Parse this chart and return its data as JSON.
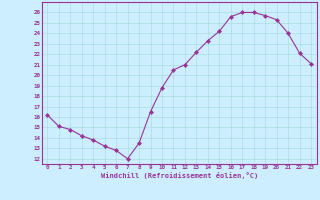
{
  "x": [
    0,
    1,
    2,
    3,
    4,
    5,
    6,
    7,
    8,
    9,
    10,
    11,
    12,
    13,
    14,
    15,
    16,
    17,
    18,
    19,
    20,
    21,
    22,
    23
  ],
  "y": [
    16.2,
    15.1,
    14.8,
    14.2,
    13.8,
    13.2,
    12.8,
    12.0,
    13.5,
    16.5,
    18.8,
    20.5,
    21.0,
    22.2,
    23.3,
    24.2,
    25.6,
    26.0,
    26.0,
    25.7,
    25.3,
    24.0,
    22.1,
    21.1
  ],
  "line_color": "#993399",
  "marker": "D",
  "marker_size": 2,
  "bg_color": "#cceeff",
  "grid_color": "#aadddd",
  "xlabel": "Windchill (Refroidissement éolien,°C)",
  "xlabel_color": "#993399",
  "tick_color": "#993399",
  "ylim": [
    11.5,
    27
  ],
  "xlim": [
    -0.5,
    23.5
  ],
  "yticks": [
    12,
    13,
    14,
    15,
    16,
    17,
    18,
    19,
    20,
    21,
    22,
    23,
    24,
    25,
    26
  ],
  "xticks": [
    0,
    1,
    2,
    3,
    4,
    5,
    6,
    7,
    8,
    9,
    10,
    11,
    12,
    13,
    14,
    15,
    16,
    17,
    18,
    19,
    20,
    21,
    22,
    23
  ]
}
